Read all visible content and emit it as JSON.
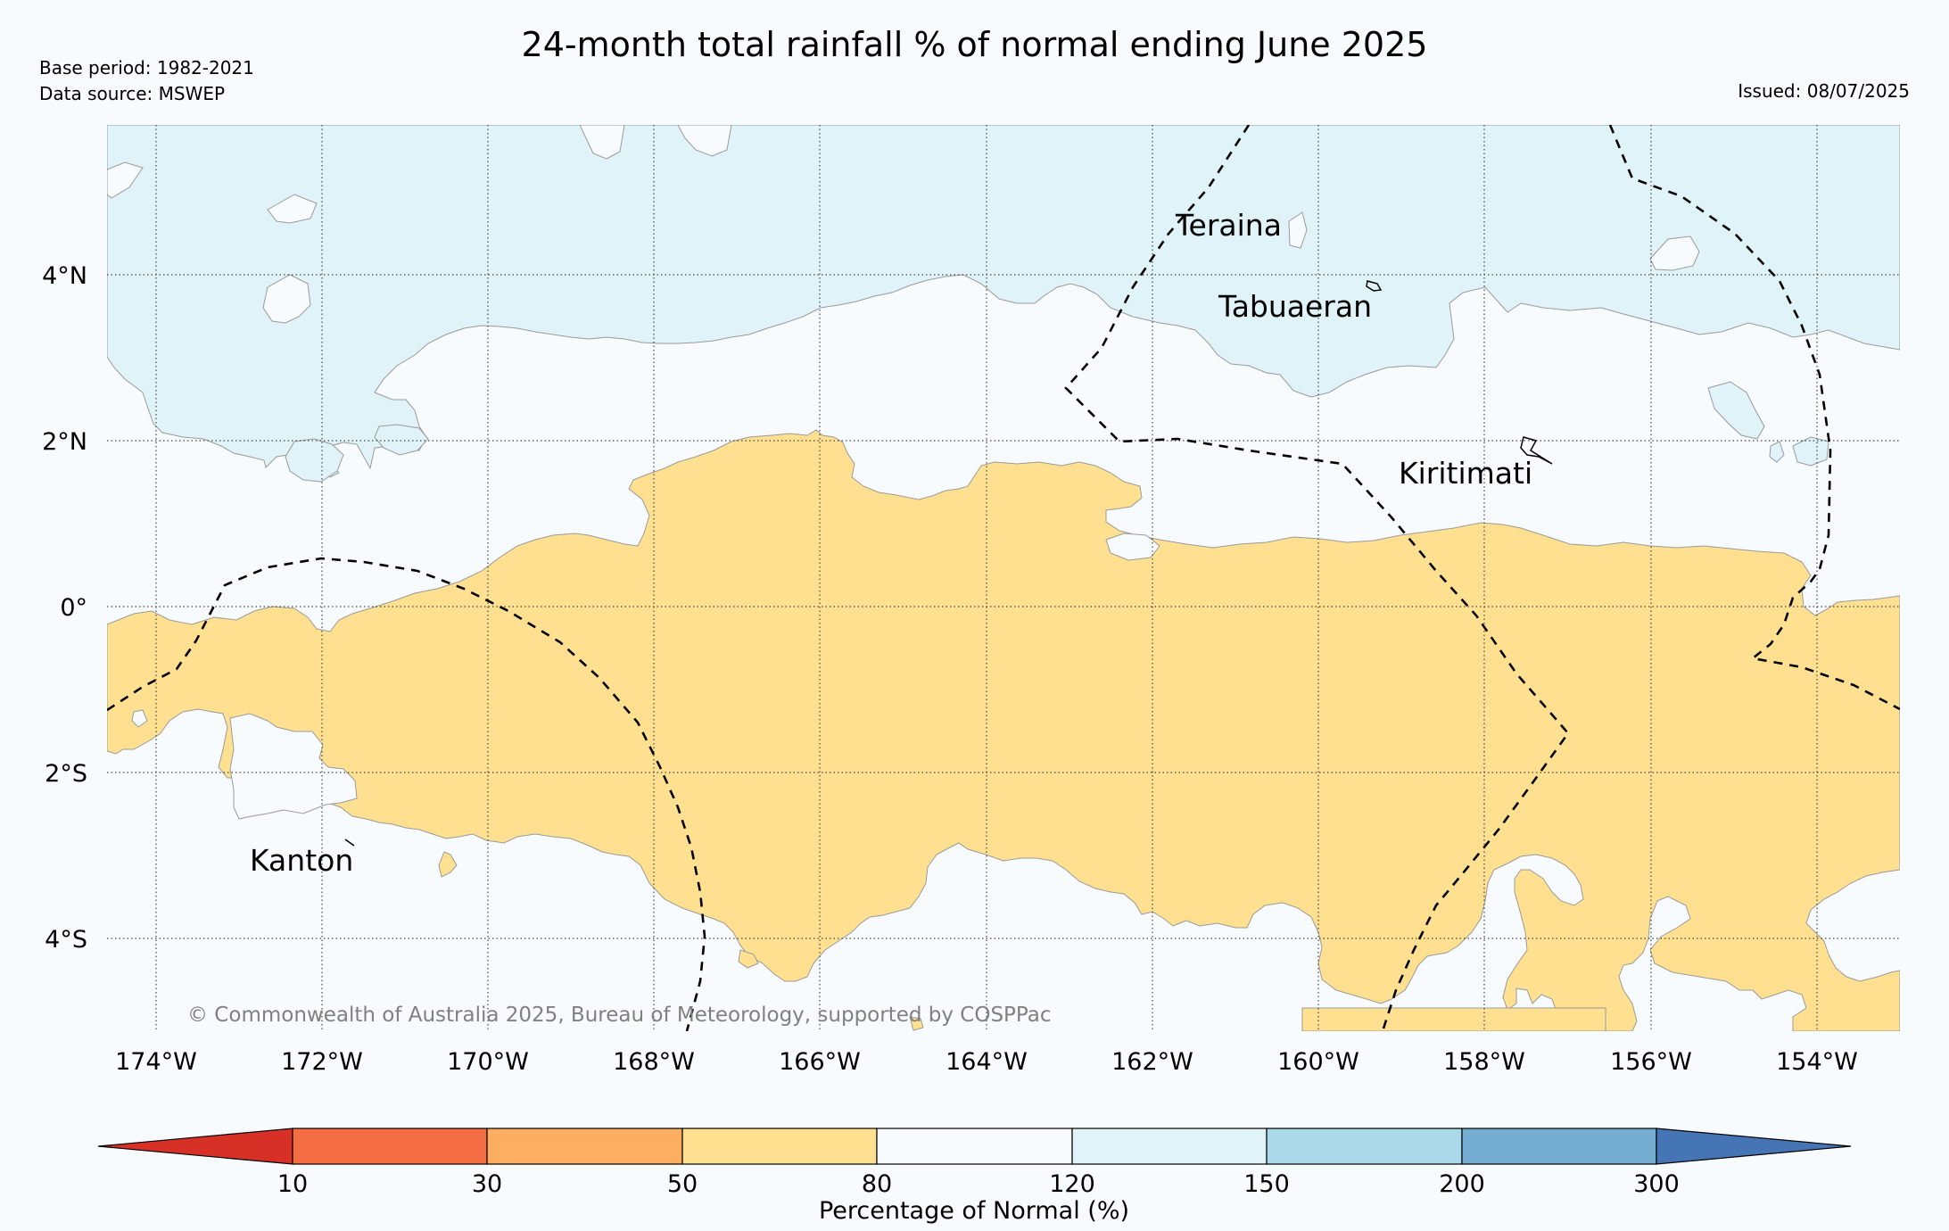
{
  "header": {
    "title": "24-month total rainfall % of normal ending June 2025",
    "base_period": "Base period: 1982-2021",
    "data_source": "Data source: MSWEP",
    "issued": "Issued: 08/07/2025"
  },
  "map": {
    "lat_labels": [
      "4°N",
      "2°N",
      "0°",
      "2°S",
      "4°S"
    ],
    "lon_labels": [
      "174°W",
      "172°W",
      "170°W",
      "168°W",
      "166°W",
      "164°W",
      "162°W",
      "160°W",
      "158°W",
      "156°W",
      "154°W"
    ],
    "places": {
      "teraina": "Teraina",
      "tabuaeran": "Tabuaeran",
      "kiritimati": "Kiritimati",
      "kanton": "Kanton"
    },
    "copyright": "© Commonwealth of Australia 2025, Bureau of Meteorology, supported by COSPPac",
    "fill_colors": {
      "below_normal_50_80": "#fee090",
      "normal_80_120": "#f7fbfd",
      "above_normal_120_150": "#e0f3f8"
    }
  },
  "colorbar": {
    "title": "Percentage of Normal (%)",
    "ticks": [
      "10",
      "30",
      "50",
      "80",
      "120",
      "150",
      "200",
      "300"
    ],
    "colors": [
      "#d73027",
      "#f46d43",
      "#fdae61",
      "#fee090",
      "#f7fbfd",
      "#e0f3f8",
      "#abd9e9",
      "#74add1",
      "#4575b4"
    ]
  }
}
